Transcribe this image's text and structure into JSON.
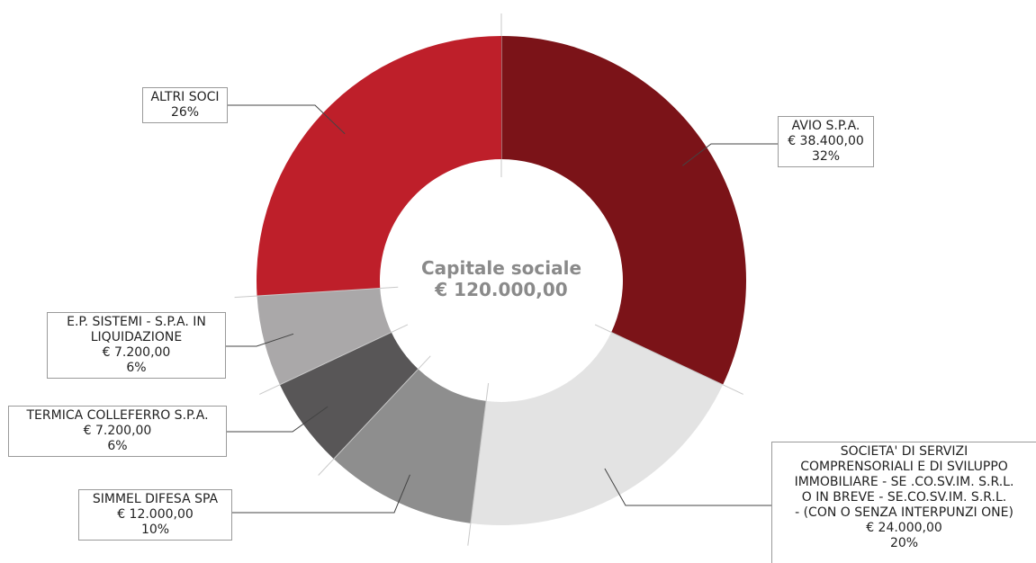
{
  "chart_data": {
    "type": "pie",
    "title": "",
    "center_label": {
      "line1": "Capitale sociale",
      "line2": "€ 120.000,00"
    },
    "slices": [
      {
        "name": "AVIO S.P.A.",
        "value": 38400,
        "amount": "€ 38.400,00",
        "percent": "32%",
        "color": "#7b1318",
        "lines": [
          "AVIO S.P.A.",
          "€ 38.400,00",
          "32%"
        ]
      },
      {
        "name": "SOCIETA' DI SERVIZI COMPRENSORIALI E DI SVILUPPO IMMOBILIARE - SE .CO.SV.IM. S.R.L. O IN BREVE - SE.CO.SV.IM. S.R.L. - (CON O SENZA INTERPUNZI ONE)",
        "value": 24000,
        "amount": "€ 24.000,00",
        "percent": "20%",
        "color": "#e3e3e3",
        "lines": [
          "SOCIETA' DI SERVIZI",
          "COMPRENSORIALI E DI SVILUPPO",
          "IMMOBILIARE - SE .CO.SV.IM. S.R.L.",
          "O IN BREVE - SE.CO.SV.IM. S.R.L.",
          " -  (CON O SENZA INTERPUNZI ONE)",
          "€ 24.000,00",
          "20%"
        ]
      },
      {
        "name": "SIMMEL DIFESA SPA",
        "value": 12000,
        "amount": "€ 12.000,00",
        "percent": "10%",
        "color": "#8e8e8e",
        "lines": [
          "SIMMEL DIFESA SPA",
          "€ 12.000,00",
          "10%"
        ]
      },
      {
        "name": "TERMICA COLLEFERRO S.P.A.",
        "value": 7200,
        "amount": "€ 7.200,00",
        "percent": "6%",
        "color": "#585657",
        "lines": [
          "TERMICA COLLEFERRO S.P.A.",
          "€ 7.200,00",
          "6%"
        ]
      },
      {
        "name": "E.P. SISTEMI - S.P.A. IN LIQUIDAZIONE",
        "value": 7200,
        "amount": "€ 7.200,00",
        "percent": "6%",
        "color": "#aaa8a9",
        "lines": [
          "E.P. SISTEMI - S.P.A. IN",
          "LIQUIDAZIONE",
          "€ 7.200,00",
          "6%"
        ]
      },
      {
        "name": "ALTRI SOCI",
        "value": 31200,
        "amount": "",
        "percent": "26%",
        "color": "#be1f2a",
        "lines": [
          "ALTRI SOCI",
          "26%"
        ]
      }
    ]
  }
}
